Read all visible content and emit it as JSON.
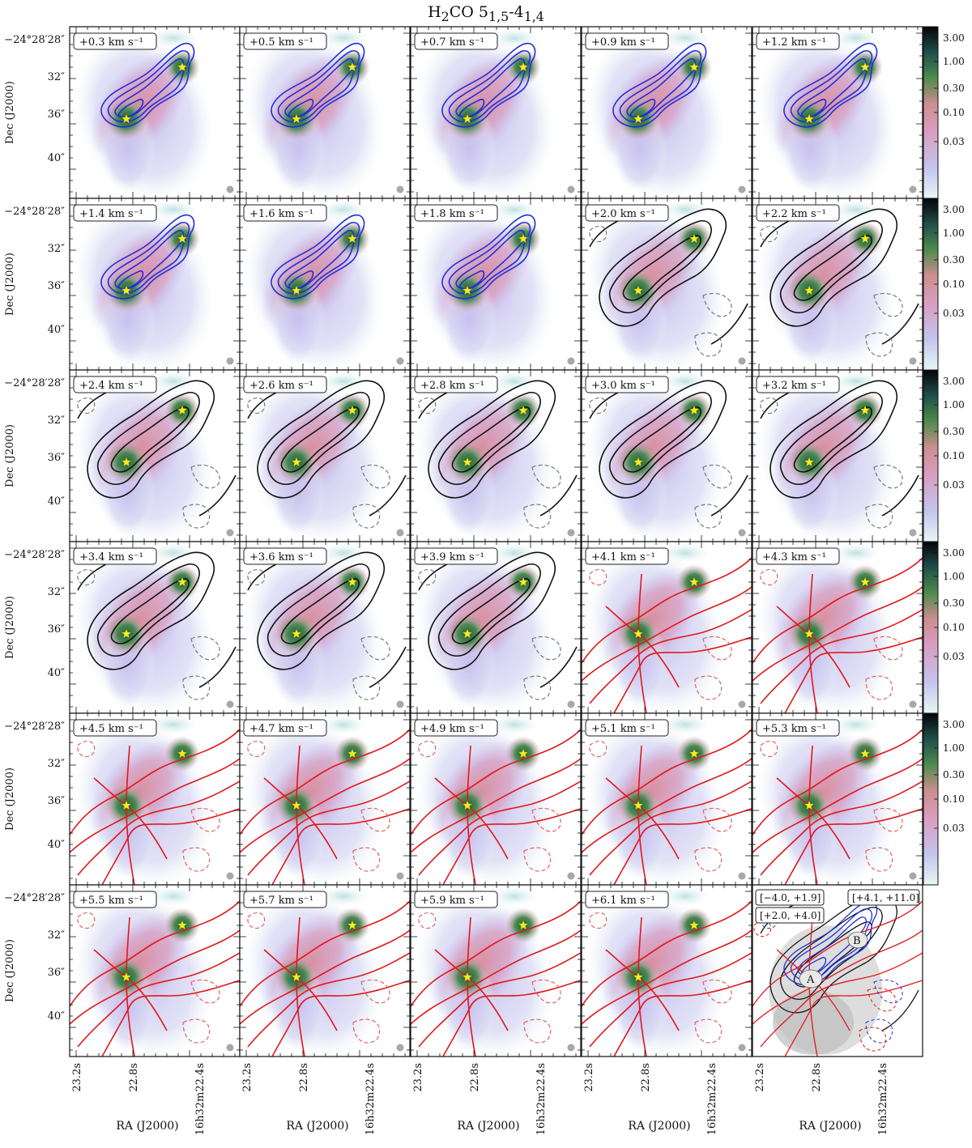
{
  "title_main": "H",
  "title_sub1": "2",
  "title_mid": "CO 5",
  "title_sub2": "1,5",
  "title_dash": "-4",
  "title_sub3": "1,4",
  "chart_data": {
    "type": "heatmap",
    "description_of_layout": "channel maps grid, 6 rows x 5 columns",
    "xlabel": "RA (J2000)",
    "ylabel": "Dec (J2000)",
    "x_ticks": [
      "23.2s",
      "22.8s",
      "16h32m22.4s"
    ],
    "y_ticks": [
      "−24°28′28″",
      "32″",
      "36″",
      "40″"
    ],
    "colorbar_ticks": [
      "3.00",
      "1.00",
      "0.30",
      "0.10",
      "0.03"
    ],
    "colorbar_scale": "log",
    "channels": [
      {
        "label": "+0.3 km s⁻¹",
        "color": "#1f2fd8"
      },
      {
        "label": "+0.5 km s⁻¹",
        "color": "#1f2fd8"
      },
      {
        "label": "+0.7 km s⁻¹",
        "color": "#1f2fd8"
      },
      {
        "label": "+0.9 km s⁻¹",
        "color": "#1f2fd8"
      },
      {
        "label": "+1.2 km s⁻¹",
        "color": "#1f2fd8"
      },
      {
        "label": "+1.4 km s⁻¹",
        "color": "#1f2fd8"
      },
      {
        "label": "+1.6 km s⁻¹",
        "color": "#1f2fd8"
      },
      {
        "label": "+1.8 km s⁻¹",
        "color": "#1f2fd8"
      },
      {
        "label": "+2.0 km s⁻¹",
        "color": "#111111"
      },
      {
        "label": "+2.2 km s⁻¹",
        "color": "#111111"
      },
      {
        "label": "+2.4 km s⁻¹",
        "color": "#111111"
      },
      {
        "label": "+2.6 km s⁻¹",
        "color": "#111111"
      },
      {
        "label": "+2.8 km s⁻¹",
        "color": "#111111"
      },
      {
        "label": "+3.0 km s⁻¹",
        "color": "#111111"
      },
      {
        "label": "+3.2 km s⁻¹",
        "color": "#111111"
      },
      {
        "label": "+3.4 km s⁻¹",
        "color": "#111111"
      },
      {
        "label": "+3.6 km s⁻¹",
        "color": "#111111"
      },
      {
        "label": "+3.9 km s⁻¹",
        "color": "#111111"
      },
      {
        "label": "+4.1 km s⁻¹",
        "color": "#e0181b"
      },
      {
        "label": "+4.3 km s⁻¹",
        "color": "#e0181b"
      },
      {
        "label": "+4.5 km s⁻¹",
        "color": "#e0181b"
      },
      {
        "label": "+4.7 km s⁻¹",
        "color": "#e0181b"
      },
      {
        "label": "+4.9 km s⁻¹",
        "color": "#e0181b"
      },
      {
        "label": "+5.1 km s⁻¹",
        "color": "#e0181b"
      },
      {
        "label": "+5.3 km s⁻¹",
        "color": "#e0181b"
      },
      {
        "label": "+5.5 km s⁻¹",
        "color": "#e0181b"
      },
      {
        "label": "+5.7 km s⁻¹",
        "color": "#e0181b"
      },
      {
        "label": "+5.9 km s⁻¹",
        "color": "#e0181b"
      },
      {
        "label": "+6.1 km s⁻¹",
        "color": "#e0181b"
      }
    ],
    "summary_panel": {
      "ranges": [
        {
          "label": "[−4.0, +1.9]",
          "color": "#1f2fd8"
        },
        {
          "label": "[+4.1, +11.0]",
          "color": "#e0181b"
        },
        {
          "label": "[+2.0, +4.0]",
          "color": "#111111"
        }
      ],
      "source_labels": [
        "A",
        "B"
      ]
    }
  }
}
